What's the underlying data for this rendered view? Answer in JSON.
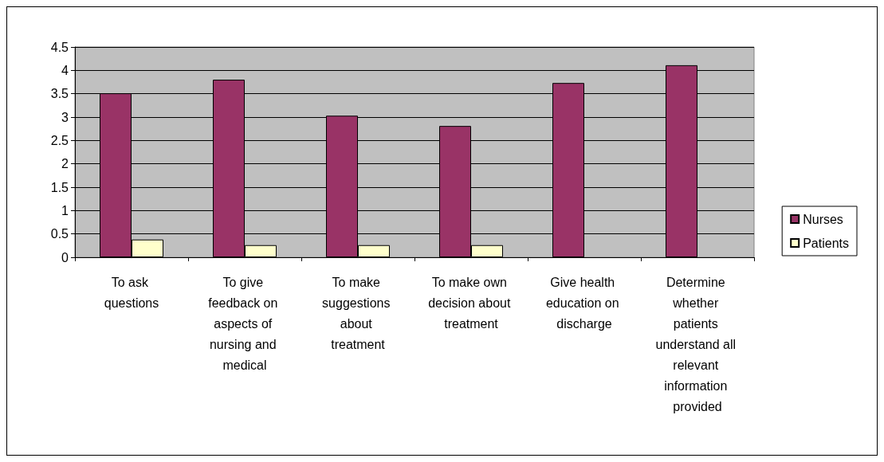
{
  "chart_data": {
    "type": "bar",
    "categories": [
      "To ask questions",
      "To give feedback on aspects of nursing and medical",
      "To make suggestions about treatment",
      "To make own decision about treatment",
      "Give health education on discharge",
      "Determine whether patients understand all relevant information provided"
    ],
    "series": [
      {
        "name": "Nurses",
        "color": "#993366",
        "values": [
          3.51,
          3.8,
          3.03,
          2.81,
          3.73,
          4.11
        ]
      },
      {
        "name": "Patients",
        "color": "#ffffcc",
        "values": [
          0.38,
          0.26,
          0.26,
          0.26,
          null,
          null
        ]
      }
    ],
    "ylim": [
      0,
      4.5
    ],
    "yticks": [
      0,
      0.5,
      1,
      1.5,
      2,
      2.5,
      3,
      3.5,
      4,
      4.5
    ],
    "grid": "y",
    "legend": "right"
  }
}
